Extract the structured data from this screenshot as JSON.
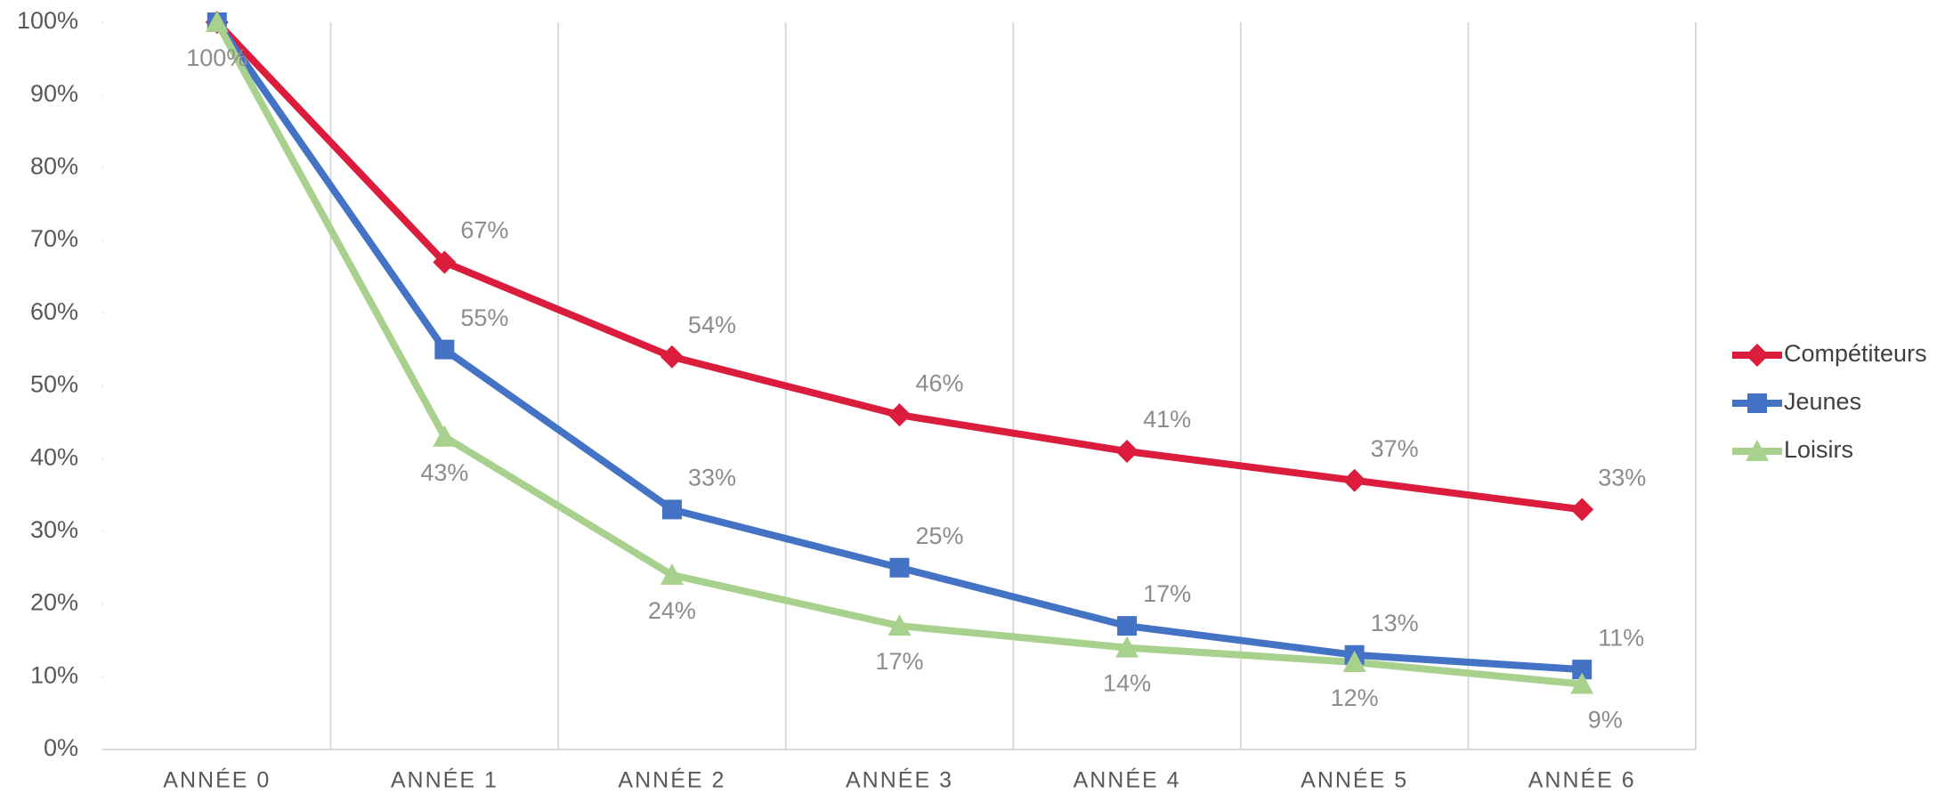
{
  "chart_data": {
    "type": "line",
    "categories": [
      "ANNÉE 0",
      "ANNÉE 1",
      "ANNÉE 2",
      "ANNÉE 3",
      "ANNÉE 4",
      "ANNÉE 5",
      "ANNÉE 6"
    ],
    "series": [
      {
        "name": "Compétiteurs",
        "color": "#dc1c3c",
        "marker": "diamond",
        "values": [
          100,
          67,
          54,
          46,
          41,
          37,
          33
        ],
        "value_labels": [
          null,
          "67%",
          "54%",
          "46%",
          "41%",
          "37%",
          "33%"
        ]
      },
      {
        "name": "Jeunes",
        "color": "#4472c4",
        "marker": "square",
        "values": [
          100,
          55,
          33,
          25,
          17,
          13,
          11
        ],
        "value_labels": [
          null,
          "55%",
          "33%",
          "25%",
          "17%",
          "13%",
          "11%"
        ]
      },
      {
        "name": "Loisirs",
        "color": "#a9d18e",
        "marker": "triangle",
        "values": [
          100,
          43,
          24,
          17,
          14,
          12,
          9
        ],
        "value_labels": [
          "100%",
          "43%",
          "24%",
          "17%",
          "14%",
          "12%",
          "9%"
        ]
      }
    ],
    "ylim": [
      0,
      100
    ],
    "yticks": [
      {
        "value": 0,
        "label": "0%"
      },
      {
        "value": 10,
        "label": "10%"
      },
      {
        "value": 20,
        "label": "20%"
      },
      {
        "value": 30,
        "label": "30%"
      },
      {
        "value": 40,
        "label": "40%"
      },
      {
        "value": 50,
        "label": "50%"
      },
      {
        "value": 60,
        "label": "60%"
      },
      {
        "value": 70,
        "label": "70%"
      },
      {
        "value": 80,
        "label": "80%"
      },
      {
        "value": 90,
        "label": "90%"
      },
      {
        "value": 100,
        "label": "100%"
      }
    ],
    "grid": "x",
    "legend": "right"
  }
}
